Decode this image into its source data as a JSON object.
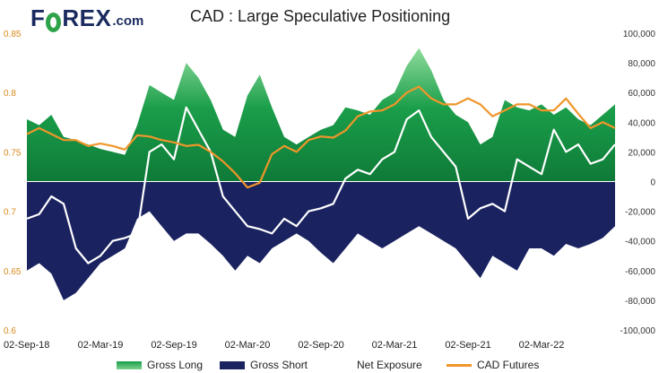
{
  "brand": {
    "pre": "F",
    "post": "REX",
    "dom": ".com"
  },
  "chart_data": {
    "type": "area",
    "title": "CAD : Large Speculative Positioning",
    "x_tick_labels": [
      "02-Sep-18",
      "02-Mar-19",
      "02-Sep-19",
      "02-Mar-20",
      "02-Sep-20",
      "02-Mar-21",
      "02-Sep-21",
      "02-Mar-22"
    ],
    "x_range_months": [
      0,
      48
    ],
    "left_axis": {
      "label": "",
      "ylim": [
        0.6,
        0.85
      ],
      "ticks": [
        0.6,
        0.65,
        0.7,
        0.75,
        0.8,
        0.85
      ],
      "tick_color": "#d98a1c"
    },
    "right_axis": {
      "label": "",
      "ylim": [
        -100000,
        100000
      ],
      "ticks": [
        -100000,
        -80000,
        -60000,
        -40000,
        -20000,
        0,
        20000,
        40000,
        60000,
        80000,
        100000
      ],
      "tick_labels": [
        "-100,000",
        "-80,000",
        "-60,000",
        "-40,000",
        "-20,000",
        "0",
        "20,000",
        "40,000",
        "60,000",
        "80,000",
        "100,000"
      ]
    },
    "x_months": [
      0,
      1,
      2,
      3,
      4,
      5,
      6,
      7,
      8,
      9,
      10,
      11,
      12,
      13,
      14,
      15,
      16,
      17,
      18,
      19,
      20,
      21,
      22,
      23,
      24,
      25,
      26,
      27,
      28,
      29,
      30,
      31,
      32,
      33,
      34,
      35,
      36,
      37,
      38,
      39,
      40,
      41,
      42,
      43,
      44,
      45,
      46,
      47,
      48
    ],
    "series": [
      {
        "name": "Gross Long",
        "axis": "right",
        "color": "#1a9e4a",
        "values": [
          42000,
          38000,
          45000,
          30000,
          28000,
          25000,
          22000,
          20000,
          18000,
          38000,
          65000,
          60000,
          55000,
          80000,
          70000,
          55000,
          35000,
          30000,
          58000,
          72000,
          50000,
          30000,
          25000,
          30000,
          35000,
          38000,
          50000,
          48000,
          45000,
          55000,
          60000,
          78000,
          90000,
          75000,
          55000,
          45000,
          40000,
          25000,
          30000,
          55000,
          50000,
          48000,
          52000,
          45000,
          50000,
          42000,
          38000,
          45000,
          52000
        ]
      },
      {
        "name": "Gross Short",
        "axis": "right",
        "color": "#1a2260",
        "values": [
          -60000,
          -55000,
          -62000,
          -80000,
          -75000,
          -65000,
          -55000,
          -50000,
          -45000,
          -25000,
          -20000,
          -30000,
          -40000,
          -35000,
          -35000,
          -42000,
          -50000,
          -60000,
          -50000,
          -55000,
          -45000,
          -40000,
          -35000,
          -40000,
          -48000,
          -55000,
          -45000,
          -35000,
          -40000,
          -45000,
          -40000,
          -35000,
          -30000,
          -35000,
          -40000,
          -45000,
          -55000,
          -65000,
          -50000,
          -55000,
          -60000,
          -45000,
          -45000,
          -50000,
          -42000,
          -45000,
          -42000,
          -38000,
          -30000
        ]
      },
      {
        "name": "Net Exposure",
        "axis": "right",
        "color": "#ffffff",
        "values": [
          -25000,
          -22000,
          -10000,
          -15000,
          -45000,
          -55000,
          -50000,
          -40000,
          -38000,
          -35000,
          20000,
          25000,
          15000,
          50000,
          35000,
          20000,
          -10000,
          -20000,
          -30000,
          -32000,
          -35000,
          -25000,
          -30000,
          -20000,
          -18000,
          -15000,
          2000,
          8000,
          5000,
          15000,
          20000,
          42000,
          48000,
          30000,
          20000,
          10000,
          -25000,
          -18000,
          -15000,
          -20000,
          15000,
          10000,
          5000,
          35000,
          20000,
          25000,
          12000,
          15000,
          25000
        ]
      },
      {
        "name": "CAD Futures",
        "axis": "left",
        "color": "#f0962a",
        "values": [
          0.765,
          0.77,
          0.765,
          0.76,
          0.76,
          0.755,
          0.757,
          0.755,
          0.752,
          0.764,
          0.763,
          0.76,
          0.758,
          0.755,
          0.756,
          0.75,
          0.742,
          0.732,
          0.72,
          0.724,
          0.748,
          0.755,
          0.75,
          0.76,
          0.763,
          0.762,
          0.768,
          0.78,
          0.784,
          0.785,
          0.79,
          0.8,
          0.805,
          0.795,
          0.79,
          0.79,
          0.795,
          0.79,
          0.78,
          0.785,
          0.79,
          0.79,
          0.785,
          0.785,
          0.795,
          0.782,
          0.77,
          0.775,
          0.77
        ]
      }
    ],
    "legend_position": "bottom"
  }
}
